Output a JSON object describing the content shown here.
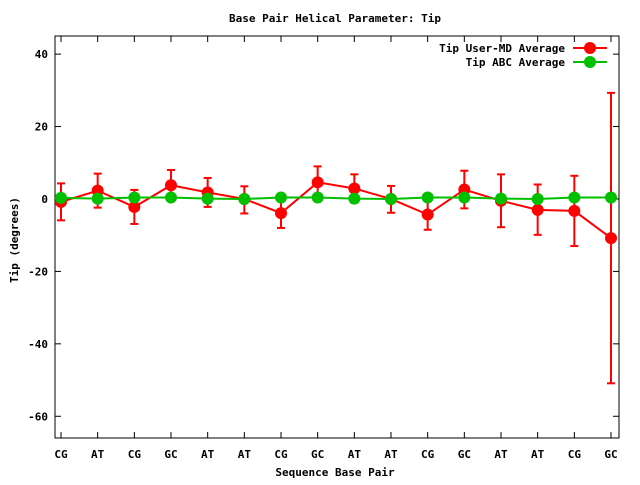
{
  "chart_data": {
    "type": "line",
    "title": "Base Pair Helical Parameter: Tip",
    "xlabel": "Sequence Base Pair",
    "ylabel": "Tip (degrees)",
    "categories": [
      "CG",
      "AT",
      "CG",
      "GC",
      "AT",
      "AT",
      "CG",
      "GC",
      "AT",
      "AT",
      "CG",
      "GC",
      "AT",
      "AT",
      "CG",
      "GC"
    ],
    "ylim": [
      -66,
      45
    ],
    "yticks": [
      40,
      20,
      0,
      -20,
      -40,
      -60
    ],
    "grid": false,
    "legend_position": "top-right",
    "series": [
      {
        "name": "Tip User-MD Average",
        "color": "#ff0000",
        "values": [
          -0.8,
          2.3,
          -2.2,
          3.8,
          1.8,
          0,
          -3.9,
          4.6,
          2.9,
          0,
          -4.3,
          2.6,
          -0.5,
          -3.0,
          -3.3,
          -10.8
        ],
        "err_low": [
          -5.9,
          -2.4,
          -6.9,
          -0.4,
          -2.2,
          -4.0,
          -8.0,
          0.2,
          -1.0,
          -3.8,
          -8.5,
          -2.6,
          -7.8,
          -9.9,
          -13.0,
          -50.9
        ],
        "err_high": [
          4.3,
          7.0,
          2.5,
          8.0,
          5.8,
          3.5,
          0.2,
          9.0,
          6.8,
          3.6,
          0,
          7.8,
          6.8,
          4.0,
          6.4,
          29.3
        ]
      },
      {
        "name": "Tip ABC Average",
        "color": "#00c000",
        "values": [
          0.3,
          0.1,
          0.4,
          0.4,
          0.1,
          0.0,
          0.4,
          0.4,
          0.1,
          0.0,
          0.4,
          0.4,
          0.1,
          0.0,
          0.4,
          0.4
        ]
      }
    ]
  }
}
